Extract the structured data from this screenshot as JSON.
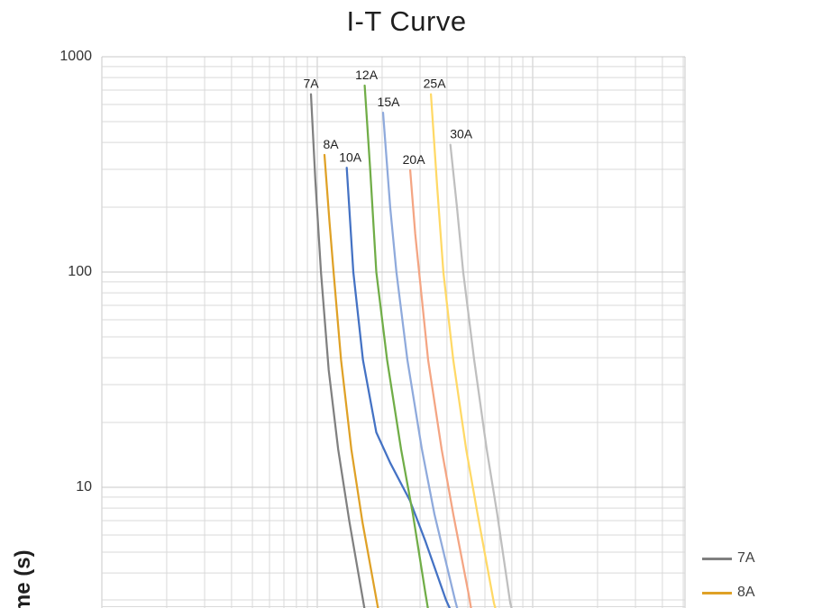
{
  "title": "I-T Curve",
  "y_axis": {
    "label": "Time (s)",
    "ticks": [
      {
        "value": 1000,
        "label": "1000"
      },
      {
        "value": 100,
        "label": "100"
      },
      {
        "value": 10,
        "label": "10"
      }
    ]
  },
  "legend": {
    "items": [
      {
        "label": "7A",
        "color": "#808080"
      },
      {
        "label": "8A",
        "color": "#DFA126"
      }
    ]
  },
  "colors": {
    "grid": "#D9D9D9",
    "border": "#C9C9C9",
    "label_text": "#1f1f1f"
  },
  "chart_data": {
    "type": "line",
    "title": "I-T Curve",
    "xlabel": "",
    "ylabel": "Time (s)",
    "x_scale": "log",
    "y_scale": "log",
    "x_visible_range": [
      1,
      509
    ],
    "y_visible_range": [
      2.75,
      1000
    ],
    "grid": true,
    "legend_position": "right",
    "series": [
      {
        "name": "7A",
        "color": "#808080",
        "label_dx": 0,
        "points": [
          [
            9.35,
            670
          ],
          [
            9.8,
            265
          ],
          [
            10.4,
            100
          ],
          [
            11.3,
            35
          ],
          [
            12.5,
            15
          ],
          [
            14.1,
            6.9
          ],
          [
            16.6,
            2.7
          ]
        ]
      },
      {
        "name": "8A",
        "color": "#DFA126",
        "label_dx": 7,
        "points": [
          [
            10.8,
            350
          ],
          [
            11.4,
            170
          ],
          [
            11.9,
            100
          ],
          [
            12.9,
            39
          ],
          [
            14.4,
            15
          ],
          [
            16.2,
            6.9
          ],
          [
            19.2,
            2.7
          ]
        ]
      },
      {
        "name": "10A",
        "color": "#4472C4",
        "label_dx": 4,
        "points": [
          [
            13.7,
            305
          ],
          [
            14.7,
            100
          ],
          [
            16.3,
            39
          ],
          [
            18.8,
            18
          ],
          [
            21.8,
            13
          ],
          [
            26.9,
            8.7
          ],
          [
            31.8,
            5.6
          ],
          [
            39.6,
            3.0
          ],
          [
            41.5,
            2.7
          ]
        ]
      },
      {
        "name": "12A",
        "color": "#70AD47",
        "label_dx": 2,
        "points": [
          [
            16.6,
            735
          ],
          [
            17.6,
            300
          ],
          [
            18.8,
            100
          ],
          [
            21.1,
            39
          ],
          [
            24.5,
            15
          ],
          [
            27.8,
            7.5
          ],
          [
            31.8,
            3.2
          ],
          [
            32.7,
            2.7
          ]
        ]
      },
      {
        "name": "15A",
        "color": "#8FAADC",
        "label_dx": 6,
        "points": [
          [
            20.2,
            550
          ],
          [
            21.8,
            200
          ],
          [
            23.3,
            100
          ],
          [
            26.2,
            39
          ],
          [
            30.6,
            15
          ],
          [
            35.0,
            7.5
          ],
          [
            43.6,
            3.0
          ],
          [
            44.8,
            2.7
          ]
        ]
      },
      {
        "name": "20A",
        "color": "#F4A583",
        "label_dx": 4,
        "points": [
          [
            27.0,
            297
          ],
          [
            28.5,
            150
          ],
          [
            29.7,
            100
          ],
          [
            32.7,
            39
          ],
          [
            37.8,
            15
          ],
          [
            42.8,
            7.5
          ],
          [
            50.4,
            3.2
          ],
          [
            51.9,
            2.7
          ]
        ]
      },
      {
        "name": "25A",
        "color": "#FFD966",
        "label_dx": 4,
        "points": [
          [
            33.7,
            670
          ],
          [
            36.0,
            250
          ],
          [
            38.5,
            100
          ],
          [
            42.8,
            39
          ],
          [
            49.1,
            15
          ],
          [
            55.5,
            7.5
          ],
          [
            66.1,
            2.9
          ],
          [
            67.4,
            2.7
          ]
        ]
      },
      {
        "name": "30A",
        "color": "#BFBFBF",
        "label_dx": 12,
        "points": [
          [
            41.5,
            390
          ],
          [
            44.5,
            200
          ],
          [
            47.6,
            100
          ],
          [
            53.5,
            39
          ],
          [
            61.2,
            15
          ],
          [
            68.5,
            7.5
          ],
          [
            78.7,
            2.9
          ],
          [
            80.2,
            2.7
          ]
        ]
      }
    ]
  }
}
